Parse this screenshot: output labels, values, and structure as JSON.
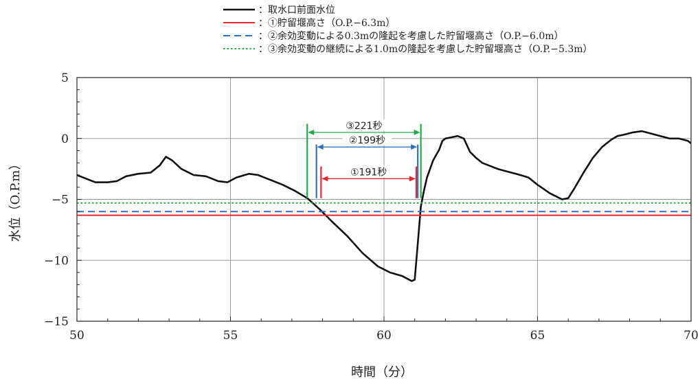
{
  "chart_data": {
    "type": "line",
    "title": "",
    "xlabel": "時間（分）",
    "ylabel": "水位（O.P.m）",
    "xlim": [
      50,
      70
    ],
    "ylim": [
      -15,
      5
    ],
    "xticks": [
      50,
      55,
      60,
      65,
      70
    ],
    "yticks": [
      -15,
      -10,
      -5,
      0,
      5
    ],
    "grid": true,
    "legend_position": "top",
    "series": [
      {
        "name": "：取水口前面水位",
        "color": "#111111",
        "style": "solid",
        "x": [
          50.0,
          50.3,
          50.6,
          51.0,
          51.3,
          51.6,
          52.0,
          52.4,
          52.7,
          52.9,
          53.1,
          53.4,
          53.8,
          54.2,
          54.6,
          54.9,
          55.2,
          55.6,
          55.9,
          56.3,
          56.7,
          57.1,
          57.5,
          57.9,
          58.3,
          58.8,
          59.3,
          59.8,
          60.2,
          60.6,
          60.9,
          61.0,
          61.1,
          61.2,
          61.3,
          61.4,
          61.6,
          61.8,
          61.9,
          62.0,
          62.2,
          62.4,
          62.6,
          62.8,
          63.0,
          63.2,
          63.4,
          63.7,
          64.0,
          64.3,
          64.7,
          65.0,
          65.4,
          65.8,
          66.0,
          66.2,
          66.5,
          66.8,
          67.1,
          67.4,
          67.6,
          67.8,
          68.1,
          68.4,
          68.7,
          69.0,
          69.3,
          69.6,
          69.9,
          70.0
        ],
        "y": [
          -3.0,
          -3.3,
          -3.6,
          -3.6,
          -3.5,
          -3.1,
          -2.9,
          -2.8,
          -2.2,
          -1.5,
          -1.8,
          -2.5,
          -3.0,
          -3.1,
          -3.5,
          -3.6,
          -3.2,
          -2.9,
          -3.0,
          -3.4,
          -3.8,
          -4.3,
          -4.9,
          -5.8,
          -6.8,
          -8.0,
          -9.4,
          -10.5,
          -11.0,
          -11.3,
          -11.7,
          -11.6,
          -8.6,
          -5.6,
          -4.3,
          -3.2,
          -1.8,
          -0.9,
          -0.2,
          0.0,
          0.1,
          0.2,
          0.0,
          -1.1,
          -1.6,
          -2.0,
          -2.2,
          -2.5,
          -2.7,
          -2.9,
          -3.2,
          -3.8,
          -4.5,
          -5.0,
          -4.9,
          -4.1,
          -2.8,
          -1.6,
          -0.7,
          -0.1,
          0.2,
          0.3,
          0.5,
          0.6,
          0.4,
          0.2,
          0.0,
          0.0,
          -0.2,
          -0.4
        ]
      },
      {
        "name": "：①貯留堰高さ（O.P.−6.3m）",
        "color": "#e8262b",
        "style": "solid",
        "x": [
          50,
          70
        ],
        "y": [
          -6.3,
          -6.3
        ]
      },
      {
        "name": "：②余効変動による0.3mの隆起を考慮した貯留堰高さ（O.P.−6.0m）",
        "color": "#2f6fc0",
        "style": "dashed",
        "x": [
          50,
          70
        ],
        "y": [
          -6.0,
          -6.0
        ]
      },
      {
        "name": "：③余効変動の継続による1.0mの隆起を考慮した貯留堰高さ（O.P.−5.3m）",
        "color": "#1faa4a",
        "style": "dotted",
        "x": [
          50,
          70
        ],
        "y": [
          -5.3,
          -5.3
        ]
      }
    ],
    "annotations": [
      {
        "label": "③221秒",
        "color": "#1faa4a",
        "x_start": 57.5,
        "x_end": 61.2,
        "y_arrow": 0.5,
        "y_bar_top": 1.2,
        "y_bar_bottom": -4.9
      },
      {
        "label": "②199秒",
        "color": "#2f6fc0",
        "x_start": 57.8,
        "x_end": 61.1,
        "y_arrow": -0.7,
        "y_bar_top": -0.5,
        "y_bar_bottom": -4.9
      },
      {
        "label": "①191秒",
        "color": "#e8262b",
        "x_start": 57.95,
        "x_end": 61.05,
        "y_arrow": -3.3,
        "y_bar_top": -2.3,
        "y_bar_bottom": -4.9
      }
    ]
  }
}
